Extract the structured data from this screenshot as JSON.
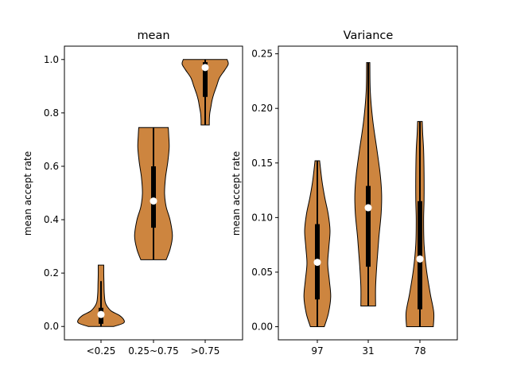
{
  "chart_data": [
    {
      "type": "violin",
      "title": "mean",
      "xlabel": "",
      "ylabel": "mean accept rate",
      "ylim": [
        -0.05,
        1.05
      ],
      "yticks": [
        "0.0",
        "0.2",
        "0.4",
        "0.6",
        "0.8",
        "1.0"
      ],
      "categories": [
        "<0.25",
        "0.25~0.75",
        ">0.75"
      ],
      "violins": [
        {
          "min": 0.0,
          "q1": 0.01,
          "median": 0.045,
          "q3": 0.07,
          "max": 0.23,
          "upper_whisker": 0.17
        },
        {
          "min": 0.25,
          "q1": 0.37,
          "median": 0.47,
          "q3": 0.6,
          "max": 0.745,
          "upper_whisker": 0.745
        },
        {
          "min": 0.755,
          "q1": 0.86,
          "median": 0.97,
          "q3": 0.99,
          "max": 1.0,
          "upper_whisker": 1.0
        }
      ],
      "fill_color": "#cd853f",
      "grid": false
    },
    {
      "type": "violin",
      "title": "Variance",
      "xlabel": "",
      "ylabel": "mean accept rate",
      "ylim": [
        -0.012,
        0.257
      ],
      "yticks": [
        "0.00",
        "0.05",
        "0.10",
        "0.15",
        "0.20",
        "0.25"
      ],
      "categories": [
        "97",
        "31",
        "78"
      ],
      "violins": [
        {
          "min": 0.0,
          "q1": 0.025,
          "median": 0.059,
          "q3": 0.094,
          "max": 0.152
        },
        {
          "min": 0.019,
          "q1": 0.055,
          "median": 0.109,
          "q3": 0.129,
          "max": 0.242
        },
        {
          "min": 0.0,
          "q1": 0.016,
          "median": 0.062,
          "q3": 0.115,
          "max": 0.188
        }
      ],
      "fill_color": "#cd853f",
      "grid": false
    }
  ]
}
